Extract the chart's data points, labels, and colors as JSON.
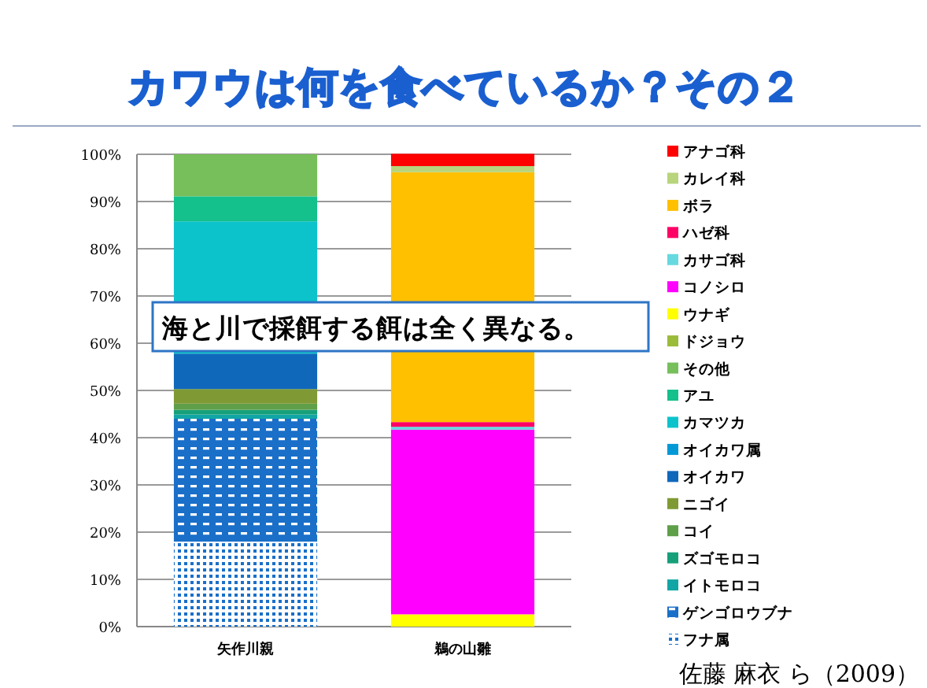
{
  "chart_data": {
    "type": "bar",
    "title": "カワウは何を食べているか？その２",
    "stacked": true,
    "categories": [
      "矢作川親",
      "鵜の山雛"
    ],
    "ylim": [
      0,
      100
    ],
    "yticks": [
      {
        "value": 0,
        "label": "0%"
      },
      {
        "value": 10,
        "label": "10%"
      },
      {
        "value": 20,
        "label": "20%"
      },
      {
        "value": 30,
        "label": "30%"
      },
      {
        "value": 40,
        "label": "40%"
      },
      {
        "value": 50,
        "label": "50%"
      },
      {
        "value": 60,
        "label": "60%"
      },
      {
        "value": 70,
        "label": "70%"
      },
      {
        "value": 80,
        "label": "80%"
      },
      {
        "value": 90,
        "label": "90%"
      },
      {
        "value": 100,
        "label": "100%"
      }
    ],
    "grid": "y",
    "legend": "right",
    "series": [
      {
        "name": "フナ属",
        "color": "#1a6fc8",
        "values": [
          18,
          null
        ]
      },
      {
        "name": "ゲンゴロウブナ",
        "color": "#1a6fc8",
        "values": [
          26,
          null
        ]
      },
      {
        "name": "イトモロコ",
        "color": "#12a5a5",
        "values": [
          0.9,
          null
        ]
      },
      {
        "name": "ズゴモロコ",
        "color": "#16a07a",
        "values": [
          1,
          null
        ]
      },
      {
        "name": "コイ",
        "color": "#5f9f4a",
        "values": [
          1.3,
          null
        ]
      },
      {
        "name": "ニゴイ",
        "color": "#7f9a35",
        "values": [
          3.1,
          null
        ]
      },
      {
        "name": "オイカワ",
        "color": "#1068bb",
        "values": [
          7.5,
          null
        ]
      },
      {
        "name": "オイカワ属",
        "color": "#0099d6",
        "values": [
          null,
          null
        ]
      },
      {
        "name": "カマツカ",
        "color": "#0cc3cc",
        "values": [
          28,
          null
        ]
      },
      {
        "name": "アユ",
        "color": "#14c08c",
        "values": [
          5.3,
          null
        ]
      },
      {
        "name": "その他",
        "color": "#77bf5b",
        "values": [
          8.9,
          null
        ]
      },
      {
        "name": "ドジョウ",
        "color": "#9bbb3b",
        "values": [
          null,
          null
        ]
      },
      {
        "name": "ウナギ",
        "color": "#ffff00",
        "values": [
          null,
          2.6
        ]
      },
      {
        "name": "コノシロ",
        "color": "#ff00ff",
        "values": [
          null,
          39.1
        ]
      },
      {
        "name": "カサゴ科",
        "color": "#66d9e0",
        "values": [
          null,
          0.6
        ]
      },
      {
        "name": "ハゼ科",
        "color": "#ff0066",
        "values": [
          null,
          1
        ]
      },
      {
        "name": "ボラ",
        "color": "#ffc000",
        "values": [
          null,
          52.9
        ]
      },
      {
        "name": "カレイ科",
        "color": "#b8d47c",
        "values": [
          null,
          1.3
        ]
      },
      {
        "name": "アナゴ科",
        "color": "#ff0000",
        "values": [
          null,
          2.6
        ]
      }
    ],
    "annotations": [
      "海と川で採餌する餌は全く異なる。",
      "佐藤 麻衣 ら（2009）"
    ]
  }
}
